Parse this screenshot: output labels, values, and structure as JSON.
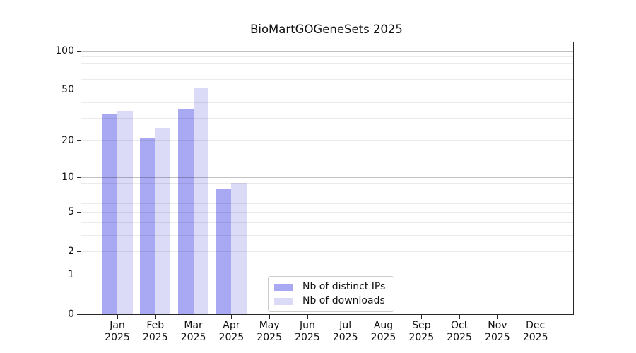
{
  "chart_data": {
    "type": "bar",
    "title": "BioMartGOGeneSets 2025",
    "categories": [
      "Jan 2025",
      "Feb 2025",
      "Mar 2025",
      "Apr 2025",
      "May 2025",
      "Jun 2025",
      "Jul 2025",
      "Aug 2025",
      "Sep 2025",
      "Oct 2025",
      "Nov 2025",
      "Dec 2025"
    ],
    "series": [
      {
        "name": "Nb of distinct IPs",
        "color": "#a9a9f3",
        "values": [
          32,
          21,
          35,
          8,
          0,
          0,
          0,
          0,
          0,
          0,
          0,
          0
        ]
      },
      {
        "name": "Nb of downloads",
        "color": "#dbdbf8",
        "values": [
          34,
          25,
          51,
          9,
          0,
          0,
          0,
          0,
          0,
          0,
          0,
          0
        ]
      }
    ],
    "xlabel": "",
    "ylabel": "",
    "yscale": "log1p",
    "ylim": [
      0,
      115
    ],
    "yticks": [
      0,
      1,
      2,
      5,
      10,
      20,
      50,
      100
    ],
    "major_gridlines": [
      1,
      10,
      100
    ],
    "minor_gridlines": [
      2,
      3,
      4,
      5,
      6,
      7,
      8,
      9,
      20,
      30,
      40,
      50,
      60,
      70,
      80,
      90
    ],
    "grid": true,
    "legend_position": "lower-center-inside",
    "axis_color": "#262626",
    "major_grid_color": "rgba(0,0,0,0.24)",
    "minor_grid_color": "rgba(0,0,0,0.08)"
  }
}
